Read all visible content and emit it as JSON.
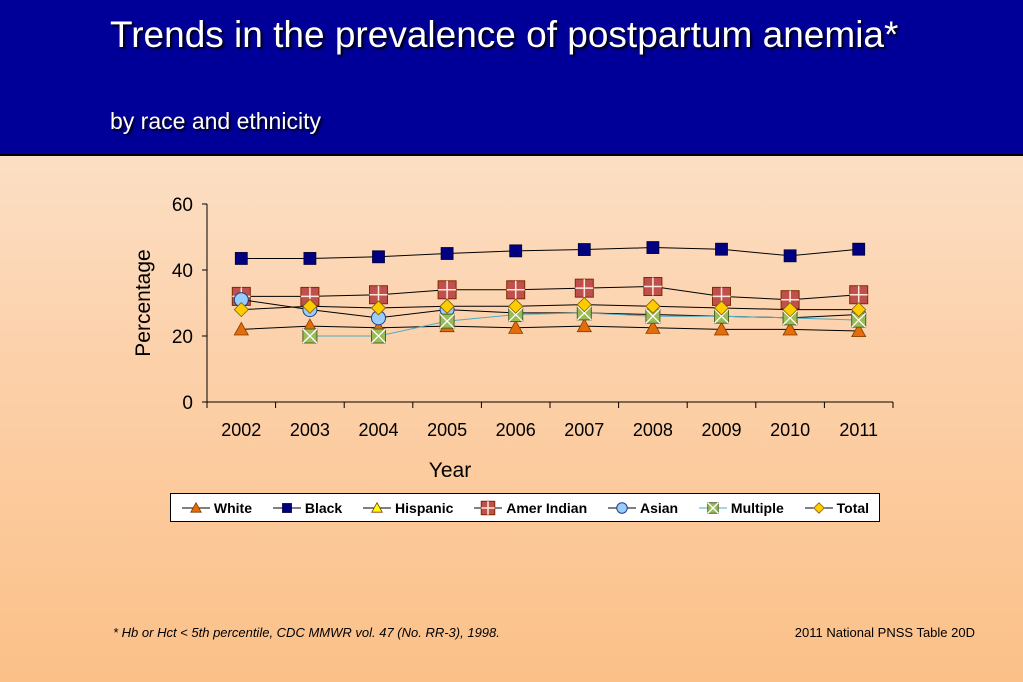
{
  "slide": {
    "title": "Trends in the prevalence of postpartum anemia*",
    "subtitle": "by race and ethnicity",
    "footnote": "*  Hb or Hct < 5th percentile, CDC MMWR vol. 47 (No. RR-3), 1998.",
    "source": "2011 National PNSS Table 20D",
    "header_color": "#000099"
  },
  "chart_data": {
    "type": "line",
    "xlabel": "Year",
    "ylabel": "Percentage",
    "ylim": [
      0,
      60
    ],
    "yticks": [
      0,
      20,
      40,
      60
    ],
    "categories": [
      "2002",
      "2003",
      "2004",
      "2005",
      "2006",
      "2007",
      "2008",
      "2009",
      "2010",
      "2011"
    ],
    "legend_position": "bottom",
    "grid": false,
    "series": [
      {
        "name": "White",
        "marker": "triangle",
        "color": "#e46c0a",
        "values": [
          22,
          23,
          22.5,
          23,
          22.5,
          23,
          22.5,
          22,
          22,
          21.5
        ]
      },
      {
        "name": "Black",
        "marker": "square",
        "color": "#000080",
        "values": [
          43.5,
          43.5,
          44,
          45,
          45.8,
          46.2,
          46.8,
          46.3,
          44.3,
          46.3
        ]
      },
      {
        "name": "Hispanic",
        "marker": "triangle",
        "color": "#ffff00",
        "values": [
          null,
          null,
          null,
          null,
          null,
          null,
          null,
          null,
          null,
          null
        ]
      },
      {
        "name": "Amer Indian",
        "marker": "square-plus",
        "color": "#c0504d",
        "values": [
          32,
          32,
          32.5,
          34,
          34,
          34.5,
          35,
          32,
          31,
          32.5
        ]
      },
      {
        "name": "Asian",
        "marker": "circle",
        "color": "#99ccff",
        "values": [
          31,
          28,
          25.5,
          28,
          27,
          27,
          26.5,
          26,
          25.5,
          26.5
        ]
      },
      {
        "name": "Multiple",
        "marker": "square-x",
        "color": "#9bbb59",
        "values": [
          null,
          20,
          20,
          24.5,
          26.5,
          27,
          26,
          26,
          25.5,
          24.8
        ]
      },
      {
        "name": "Total",
        "marker": "diamond",
        "color": "#ffcc00",
        "values": [
          28,
          29,
          28.5,
          29,
          29,
          29.5,
          29,
          28.5,
          28,
          28
        ]
      }
    ]
  }
}
